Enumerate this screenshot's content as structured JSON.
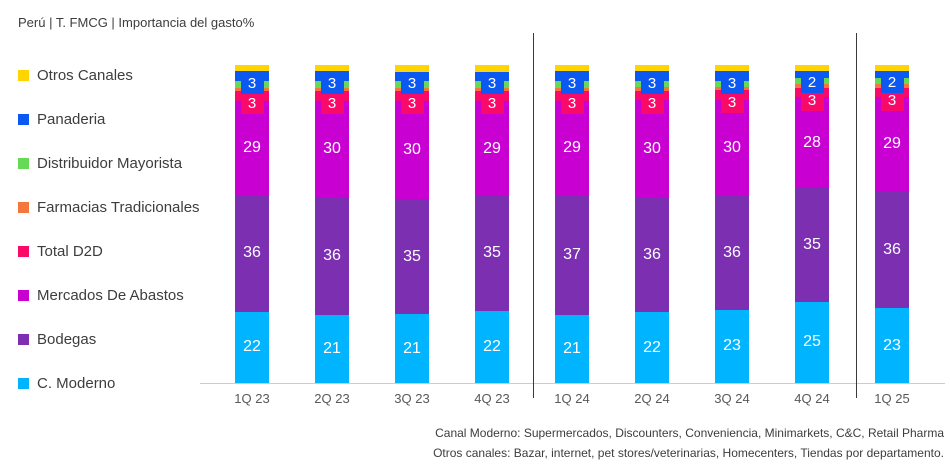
{
  "title": "Perú | T. FMCG | Importancia del gasto%",
  "footnotes": [
    "Canal Moderno: Supermercados, Discounters, Conveniencia, Minimarkets, C&C, Retail Pharma",
    "Otros canales: Bazar, internet, pet stores/veterinarias, Homecenters, Tiendas por departamento."
  ],
  "chart_data": {
    "type": "bar",
    "stacked": true,
    "unit": "%",
    "title": "Perú | T. FMCG | Importancia del gasto%",
    "xlabel": "",
    "ylabel": "Importancia del gasto %",
    "ylim": [
      0,
      100
    ],
    "legend_position": "left",
    "grid": false,
    "categories": [
      "1Q 23",
      "2Q 23",
      "3Q 23",
      "4Q 23",
      "1Q 24",
      "2Q 24",
      "3Q 24",
      "4Q 24",
      "1Q 25"
    ],
    "group_separators_after_category_index": [
      3,
      7
    ],
    "series": [
      {
        "name": "Otros Canales",
        "color": "#FFD400",
        "labeled": false,
        "label_style": "none",
        "values": [
          2,
          2,
          2,
          2,
          2,
          2,
          2,
          2,
          2
        ]
      },
      {
        "name": "Panaderia",
        "color": "#0C59F2",
        "labeled": true,
        "label_style": "box",
        "values": [
          3,
          3,
          3,
          3,
          3,
          3,
          3,
          2,
          2
        ]
      },
      {
        "name": "Distribuidor Mayorista",
        "color": "#66D957",
        "labeled": false,
        "label_style": "none",
        "values": [
          2,
          2,
          2,
          2,
          2,
          2,
          2,
          2,
          2
        ]
      },
      {
        "name": "Farmacias Tradicionales",
        "color": "#F5763C",
        "labeled": false,
        "label_style": "none",
        "values": [
          1,
          1,
          1,
          1,
          1,
          1,
          1,
          1,
          1
        ]
      },
      {
        "name": "Total D2D",
        "color": "#F90A68",
        "labeled": true,
        "label_style": "box",
        "values": [
          3,
          3,
          3,
          3,
          3,
          3,
          3,
          3,
          3
        ]
      },
      {
        "name": "Mercados De Abastos",
        "color": "#C800D2",
        "labeled": true,
        "label_style": "plain",
        "values": [
          29,
          30,
          30,
          29,
          29,
          30,
          30,
          28,
          29
        ]
      },
      {
        "name": "Bodegas",
        "color": "#7C2FB0",
        "labeled": true,
        "label_style": "plain",
        "values": [
          36,
          36,
          35,
          35,
          37,
          36,
          36,
          35,
          36
        ]
      },
      {
        "name": "C. Moderno",
        "color": "#00B4FF",
        "labeled": true,
        "label_style": "plain",
        "values": [
          22,
          21,
          21,
          22,
          21,
          22,
          23,
          25,
          23
        ]
      }
    ]
  }
}
